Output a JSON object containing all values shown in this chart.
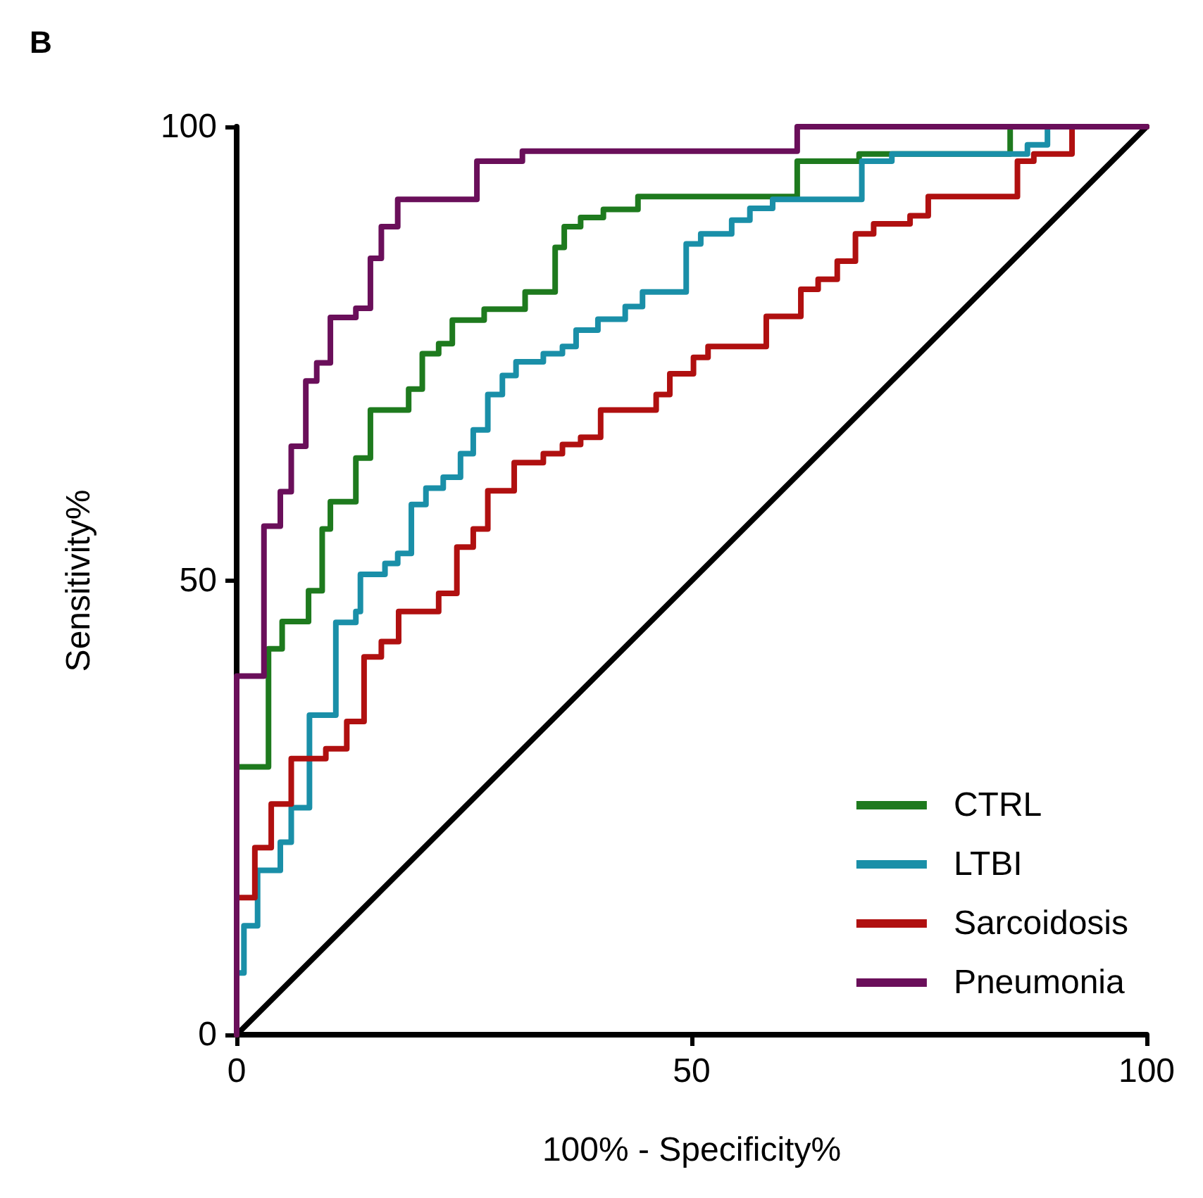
{
  "chart_data": {
    "type": "line",
    "title": "B",
    "xlabel": "100% - Specificity%",
    "ylabel": "Sensitivity%",
    "xlim": [
      0,
      100
    ],
    "ylim": [
      0,
      100
    ],
    "xticks": [
      0,
      50,
      100
    ],
    "yticks": [
      0,
      50,
      100
    ],
    "grid": false,
    "legend": "bottom right",
    "line_style": "solid",
    "series": [
      {
        "type": "line",
        "color": "#000000",
        "x": [
          0,
          100
        ],
        "values": [
          0,
          100
        ]
      },
      {
        "name": "CTRL",
        "color": "#1e7a1e",
        "x": [
          0,
          0,
          3.5,
          3.5,
          5,
          5,
          7.9,
          7.9,
          9.4,
          9.4,
          10.3,
          10.3,
          13.1,
          13.1,
          14.7,
          14.7,
          18.9,
          18.9,
          20.4,
          20.4,
          22.2,
          22.2,
          23.7,
          23.7,
          27.2,
          27.2,
          31.7,
          31.7,
          35,
          35,
          36,
          36,
          37.8,
          37.8,
          40.3,
          40.3,
          44.1,
          44.1,
          61.6,
          61.6,
          68.4,
          68.4,
          85,
          85,
          100
        ],
        "values": [
          0,
          29.5,
          29.5,
          42.5,
          42.5,
          45.5,
          45.5,
          48.9,
          48.9,
          55.7,
          55.7,
          58.7,
          58.7,
          63.5,
          63.5,
          68.8,
          68.8,
          71.1,
          71.1,
          75,
          75,
          76.1,
          76.1,
          78.7,
          78.7,
          79.9,
          79.9,
          81.8,
          81.8,
          86.7,
          86.7,
          89,
          89,
          90,
          90,
          90.9,
          90.9,
          92.3,
          92.3,
          96.2,
          96.2,
          97,
          97,
          100,
          100
        ]
      },
      {
        "name": "LTBI",
        "color": "#1a8fa8",
        "x": [
          0,
          0,
          0.8,
          0.8,
          2.3,
          2.3,
          4.8,
          4.8,
          6,
          6,
          8,
          8,
          10.9,
          10.9,
          13.1,
          13.1,
          13.6,
          13.6,
          16.3,
          16.3,
          17.7,
          17.7,
          19.2,
          19.2,
          20.8,
          20.8,
          22.7,
          22.7,
          24.6,
          24.6,
          26,
          26,
          27.6,
          27.6,
          29.2,
          29.2,
          30.7,
          30.7,
          33.7,
          33.7,
          35.8,
          35.8,
          37.3,
          37.3,
          39.7,
          39.7,
          42.7,
          42.7,
          44.6,
          44.6,
          49.4,
          49.4,
          51,
          51,
          54.4,
          54.4,
          56.4,
          56.4,
          58.9,
          58.9,
          68.7,
          68.7,
          72,
          72,
          86.9,
          86.9,
          89.1,
          89.1,
          100
        ],
        "values": [
          0,
          6.8,
          6.8,
          12,
          12,
          18.1,
          18.1,
          21.2,
          21.2,
          25,
          25,
          35.2,
          35.2,
          45.4,
          45.4,
          46.6,
          46.6,
          50.7,
          50.7,
          51.9,
          51.9,
          53,
          53,
          58.4,
          58.4,
          60.2,
          60.2,
          61.4,
          61.4,
          64,
          64,
          66.6,
          66.6,
          70.5,
          70.5,
          72.6,
          72.6,
          74.1,
          74.1,
          75,
          75,
          75.8,
          75.8,
          77.6,
          77.6,
          78.8,
          78.8,
          80.2,
          80.2,
          81.8,
          81.8,
          87.1,
          87.1,
          88.2,
          88.2,
          89.7,
          89.7,
          91,
          91,
          92,
          92,
          96.2,
          96.2,
          97,
          97,
          98,
          98,
          100,
          100
        ]
      },
      {
        "name": "Sarcoidosis",
        "color": "#b01010",
        "x": [
          0,
          0,
          2,
          2,
          3.8,
          3.8,
          6,
          6,
          9.8,
          9.8,
          12.1,
          12.1,
          14,
          14,
          15.9,
          15.9,
          17.8,
          17.8,
          22.2,
          22.2,
          24.2,
          24.2,
          26,
          26,
          27.6,
          27.6,
          30.5,
          30.5,
          33.7,
          33.7,
          35.8,
          35.8,
          37.8,
          37.8,
          40,
          40,
          46.1,
          46.1,
          47.6,
          47.6,
          50.2,
          50.2,
          51.8,
          51.8,
          58.2,
          58.2,
          62,
          62,
          63.9,
          63.9,
          66,
          66,
          68,
          68,
          70,
          70,
          74,
          74,
          76,
          76,
          85.8,
          85.8,
          87.6,
          87.6,
          91.8,
          91.8,
          100
        ],
        "values": [
          0,
          15.1,
          15.1,
          20.6,
          20.6,
          25.4,
          25.4,
          30.4,
          30.4,
          31.5,
          31.5,
          34.5,
          34.5,
          41.6,
          41.6,
          43.3,
          43.3,
          46.6,
          46.6,
          48.6,
          48.6,
          53.7,
          53.7,
          55.7,
          55.7,
          59.9,
          59.9,
          63,
          63,
          64,
          64,
          65,
          65,
          65.8,
          65.8,
          68.8,
          68.8,
          70.5,
          70.5,
          72.8,
          72.8,
          74.6,
          74.6,
          75.8,
          75.8,
          79.1,
          79.1,
          82.1,
          82.1,
          83.2,
          83.2,
          85.2,
          85.2,
          88.2,
          88.2,
          89.3,
          89.3,
          90.2,
          90.2,
          92.3,
          92.3,
          96.2,
          96.2,
          97,
          97,
          100,
          100
        ]
      },
      {
        "name": "Pneumonia",
        "color": "#6a0f5a",
        "x": [
          0,
          0,
          3,
          3,
          4.8,
          4.8,
          6,
          6,
          7.6,
          7.6,
          8.8,
          8.8,
          10.3,
          10.3,
          13.1,
          13.1,
          14.7,
          14.7,
          15.9,
          15.9,
          17.7,
          17.7,
          26.4,
          26.4,
          31.4,
          31.4,
          61.6,
          61.6,
          100
        ],
        "values": [
          0,
          39.5,
          39.5,
          56,
          56,
          59.8,
          59.8,
          64.8,
          64.8,
          72,
          72,
          74,
          74,
          79,
          79,
          80,
          80,
          85.5,
          85.5,
          89,
          89,
          92,
          92,
          96.2,
          96.2,
          97.3,
          97.3,
          100,
          100
        ]
      }
    ]
  }
}
